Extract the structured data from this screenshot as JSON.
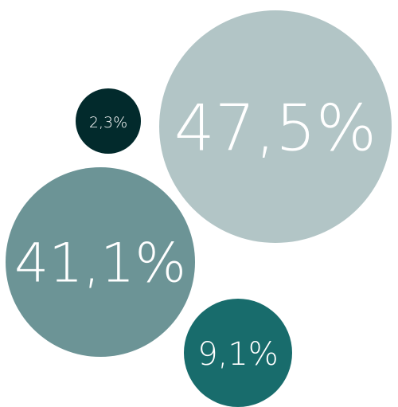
{
  "chart_data": {
    "type": "bubble",
    "series": [
      {
        "label": "47,5%",
        "value": 47.5,
        "color": "#b2c5c6"
      },
      {
        "label": "41,1%",
        "value": 41.1,
        "color": "#6c9496"
      },
      {
        "label": "9,1%",
        "value": 9.1,
        "color": "#186c6c"
      },
      {
        "label": "2,3%",
        "value": 2.3,
        "color": "#022a2c"
      }
    ]
  }
}
